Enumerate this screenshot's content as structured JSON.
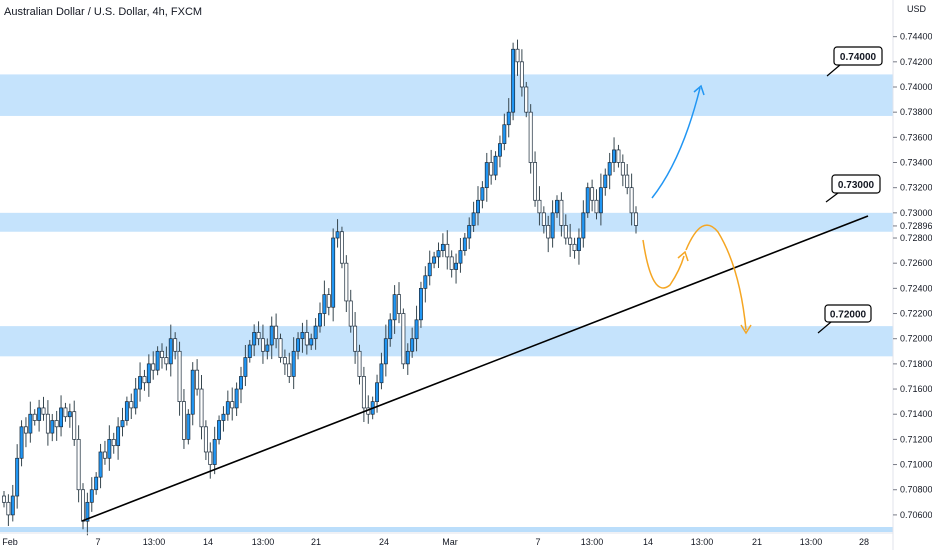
{
  "header": {
    "title": "Australian Dollar / U.S. Dollar, 4h, FXCM"
  },
  "chart_data": {
    "type": "candlestick",
    "symbol": "AUDUSD",
    "timeframe": "4h",
    "unit": "USD",
    "ylim": [
      0.7048,
      0.7458
    ],
    "y_ticks": [
      "0.74400",
      "0.74200",
      "0.74000",
      "0.73800",
      "0.73600",
      "0.73400",
      "0.73200",
      "0.73000",
      "0.72800",
      "0.72600",
      "0.72400",
      "0.72200",
      "0.72000",
      "0.71800",
      "0.71600",
      "0.71400",
      "0.71200",
      "0.71000",
      "0.70800",
      "0.70600"
    ],
    "last_price": "0.72896",
    "x_ticks": [
      "Feb",
      "7",
      "13:00",
      "14",
      "13:00",
      "21",
      "24",
      "Mar",
      "7",
      "13:00",
      "14",
      "13:00",
      "21",
      "13:00",
      "28"
    ],
    "zones": [
      {
        "label": "0.74000",
        "low": 0.7377,
        "high": 0.741
      },
      {
        "label": "0.73000",
        "low": 0.7285,
        "high": 0.73
      },
      {
        "label": "0.72000",
        "low": 0.7186,
        "high": 0.721
      }
    ],
    "trendline": {
      "from": [
        0,
        0.7054
      ],
      "to": [
        1,
        0.729
      ]
    },
    "closes": [
      0.707,
      0.706,
      0.7075,
      0.7105,
      0.713,
      0.7125,
      0.714,
      0.7135,
      0.7145,
      0.714,
      0.7125,
      0.7135,
      0.713,
      0.7145,
      0.7138,
      0.7142,
      0.712,
      0.708,
      0.7055,
      0.707,
      0.708,
      0.709,
      0.711,
      0.7105,
      0.712,
      0.7115,
      0.713,
      0.7135,
      0.715,
      0.7145,
      0.716,
      0.717,
      0.7165,
      0.718,
      0.7175,
      0.719,
      0.7185,
      0.718,
      0.72,
      0.719,
      0.715,
      0.712,
      0.714,
      0.7175,
      0.716,
      0.713,
      0.711,
      0.71,
      0.712,
      0.7135,
      0.714,
      0.715,
      0.7145,
      0.716,
      0.717,
      0.7185,
      0.7195,
      0.7205,
      0.72,
      0.719,
      0.7195,
      0.721,
      0.72,
      0.7185,
      0.718,
      0.717,
      0.719,
      0.72,
      0.7205,
      0.7195,
      0.72,
      0.721,
      0.722,
      0.7235,
      0.7225,
      0.728,
      0.7285,
      0.726,
      0.723,
      0.721,
      0.719,
      0.717,
      0.7145,
      0.714,
      0.715,
      0.7165,
      0.718,
      0.72,
      0.7215,
      0.7235,
      0.722,
      0.718,
      0.719,
      0.72,
      0.7215,
      0.724,
      0.725,
      0.726,
      0.7265,
      0.727,
      0.7275,
      0.7265,
      0.7255,
      0.726,
      0.727,
      0.728,
      0.729,
      0.73,
      0.731,
      0.732,
      0.734,
      0.733,
      0.7345,
      0.7355,
      0.737,
      0.738,
      0.743,
      0.742,
      0.74,
      0.738,
      0.734,
      0.731,
      0.73,
      0.729,
      0.728,
      0.73,
      0.731,
      0.729,
      0.728,
      0.7275,
      0.727,
      0.728,
      0.73,
      0.732,
      0.731,
      0.73,
      0.732,
      0.733,
      0.734,
      0.735,
      0.734,
      0.733,
      0.732,
      0.73,
      0.729
    ]
  }
}
